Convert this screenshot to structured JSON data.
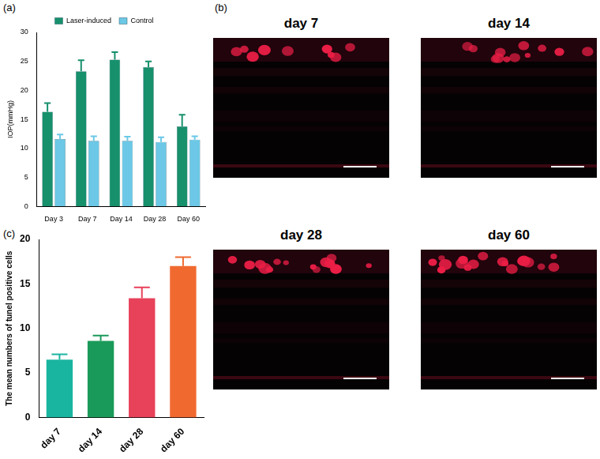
{
  "chart_data": [
    {
      "type": "bar",
      "panel": "(a)",
      "y_label": "IOP(mmHg)",
      "categories": [
        "Day 3",
        "Day 7",
        "Day 14",
        "Day 28",
        "Day 60"
      ],
      "series": [
        {
          "name": "Laser-induced",
          "color": "#17906c",
          "values": [
            16.3,
            23.3,
            25.3,
            24.0,
            13.8
          ],
          "errors": [
            1.5,
            1.9,
            1.3,
            1.0,
            2.0
          ]
        },
        {
          "name": "Control",
          "color": "#6cc8e6",
          "values": [
            11.6,
            11.3,
            11.3,
            11.1,
            11.5
          ],
          "errors": [
            0.8,
            0.8,
            0.7,
            0.8,
            0.6
          ]
        }
      ],
      "ylim": [
        0,
        30
      ],
      "yticks": [
        0,
        5,
        10,
        15,
        20,
        25,
        30
      ],
      "grid": false,
      "legend": "top"
    },
    {
      "type": "bar",
      "panel": "(c)",
      "y_label": "The mean numbers of tunel positive cells",
      "categories": [
        "day 7",
        "day 14",
        "day 28",
        "day 60"
      ],
      "values": [
        6.5,
        8.6,
        13.4,
        17.0
      ],
      "errors": [
        0.6,
        0.6,
        1.2,
        1.0
      ],
      "colors": [
        "#1ab5a0",
        "#1a9a5a",
        "#e8415a",
        "#f06a30"
      ],
      "ylim": [
        0,
        20
      ],
      "yticks": [
        0,
        5,
        10,
        15,
        20
      ],
      "grid": false
    }
  ],
  "images": {
    "panel": "(b)",
    "titles": [
      "day 7",
      "day 14",
      "day 28",
      "day 60"
    ]
  }
}
